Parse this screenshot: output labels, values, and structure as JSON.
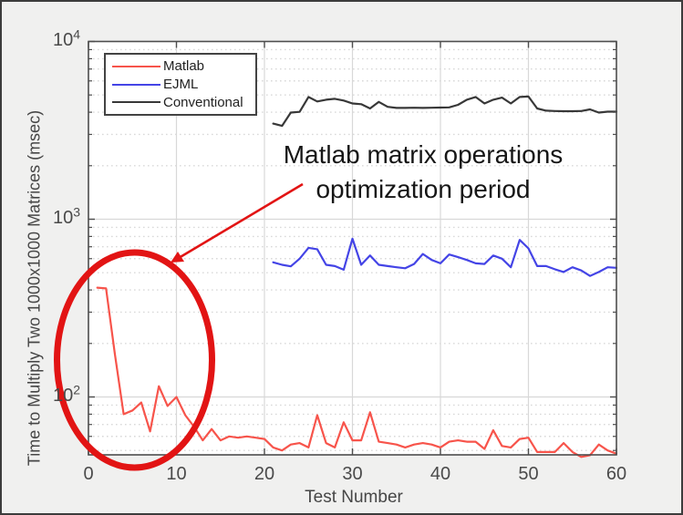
{
  "figure": {
    "background": "#f0f0ef",
    "border_color": "#3c3c3c",
    "plot_background": "#ffffff"
  },
  "axes": {
    "xlabel": "Test Number",
    "ylabel": "Time to Multiply Two 1000x1000 Matrices (msec)",
    "x_tick_labels": [
      "0",
      "10",
      "20",
      "30",
      "40",
      "50",
      "60"
    ],
    "y_tick_base": "10",
    "y_tick_exponents": [
      "4",
      "3",
      "2"
    ],
    "tick_color": "#4a4a4a",
    "grid_color": "#d8d8d8",
    "minor_grid_color": "#d9d9d9",
    "axis_box_color": "#4d4d4d"
  },
  "legend": {
    "position": "top-left",
    "items": [
      "Matlab",
      "EJML",
      "Conventional"
    ]
  },
  "annotation": {
    "line1": "Matlab matrix operations",
    "line2": "optimization period",
    "color": "#e21414",
    "shape": "ellipse-with-arrow"
  },
  "chart_data": {
    "type": "line",
    "title": "",
    "xlabel": "Test Number",
    "ylabel": "Time to Multiply Two 1000x1000 Matrices (msec)",
    "x_ticks": [
      0,
      10,
      20,
      30,
      40,
      50,
      60
    ],
    "xlim": [
      0,
      60
    ],
    "y_scale": "log",
    "ylim": [
      47,
      10000
    ],
    "y_major_ticks": [
      100,
      1000,
      10000
    ],
    "grid": true,
    "minor_grid": "y-dotted",
    "legend_position": "top-left",
    "series": [
      {
        "name": "Matlab",
        "color": "#f7544b",
        "x_start": 1,
        "values": [
          412,
          408,
          174,
          80,
          84,
          93,
          64,
          115,
          89,
          100,
          79,
          68,
          57,
          66,
          57,
          60,
          59,
          60,
          59,
          58,
          52,
          50,
          54,
          55,
          52,
          79,
          55,
          52,
          72,
          57,
          57,
          82,
          56,
          55,
          54,
          52,
          54,
          55,
          54,
          52,
          56,
          57,
          56,
          56,
          51,
          65,
          53,
          52,
          58,
          59,
          49,
          49,
          49,
          55,
          49,
          46,
          47,
          54,
          50,
          48
        ]
      },
      {
        "name": "EJML",
        "color": "#4444e6",
        "x_start": 21,
        "values": [
          572,
          554,
          543,
          600,
          690,
          678,
          554,
          545,
          520,
          777,
          554,
          625,
          554,
          545,
          537,
          530,
          560,
          638,
          590,
          565,
          633,
          612,
          590,
          565,
          560,
          625,
          600,
          537,
          765,
          685,
          545,
          545,
          523,
          505,
          537,
          515,
          480,
          505,
          537,
          533
        ]
      },
      {
        "name": "Conventional",
        "color": "#383838",
        "x_start": 21,
        "values": [
          3450,
          3350,
          3980,
          4020,
          4870,
          4600,
          4700,
          4760,
          4650,
          4480,
          4440,
          4200,
          4570,
          4290,
          4230,
          4230,
          4240,
          4230,
          4240,
          4250,
          4260,
          4400,
          4700,
          4870,
          4480,
          4700,
          4830,
          4480,
          4870,
          4900,
          4200,
          4080,
          4060,
          4050,
          4050,
          4060,
          4150,
          3980,
          4030,
          4030
        ]
      }
    ]
  }
}
